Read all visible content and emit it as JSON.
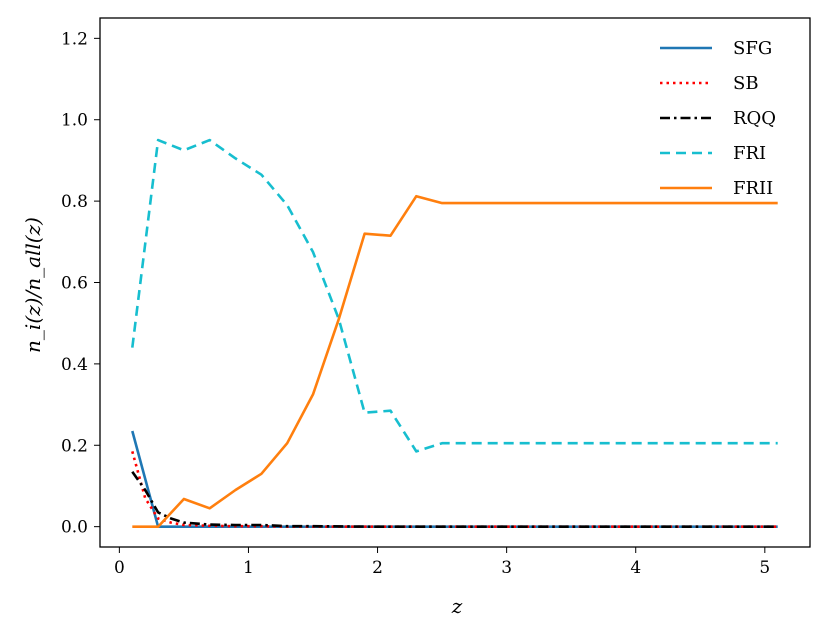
{
  "chart_data": {
    "type": "line",
    "xlabel": "z",
    "ylabel": "n_i(z)/n_all(z)",
    "xlim": [
      -0.15,
      5.35
    ],
    "ylim": [
      -0.05,
      1.25
    ],
    "xticks": [
      0,
      1,
      2,
      3,
      4,
      5
    ],
    "xtick_labels": [
      "0",
      "1",
      "2",
      "3",
      "4",
      "5"
    ],
    "yticks": [
      0.0,
      0.2,
      0.4,
      0.6,
      0.8,
      1.0,
      1.2
    ],
    "ytick_labels": [
      "0.0",
      "0.2",
      "0.4",
      "0.6",
      "0.8",
      "1.0",
      "1.2"
    ],
    "grid": false,
    "legend_position": "top-right",
    "series": [
      {
        "name": "SFG",
        "color": "#1f77b4",
        "style": "solid",
        "x": [
          0.1,
          0.3,
          0.5,
          0.7,
          0.9,
          1.1,
          1.3,
          1.5,
          1.7,
          1.9,
          2.1,
          2.3,
          2.5,
          3.0,
          3.5,
          4.0,
          4.5,
          5.1
        ],
        "y": [
          0.235,
          0.0,
          0.0,
          0.0,
          0.0,
          0.0,
          0.0,
          0.0,
          0.0,
          0.0,
          0.0,
          0.0,
          0.0,
          0.0,
          0.0,
          0.0,
          0.0,
          0.0
        ]
      },
      {
        "name": "SB",
        "color": "#ff0000",
        "style": "dotted",
        "x": [
          0.1,
          0.2,
          0.3,
          0.4,
          0.5,
          0.7,
          0.9,
          1.1,
          1.3,
          1.5,
          2.0,
          2.5,
          3.0,
          4.0,
          5.1
        ],
        "y": [
          0.185,
          0.07,
          0.02,
          0.01,
          0.004,
          0.002,
          0.001,
          0.001,
          0.0,
          0.0,
          0.0,
          0.0,
          0.0,
          0.0,
          0.0
        ]
      },
      {
        "name": "RQQ",
        "color": "#000000",
        "style": "dashdot",
        "x": [
          0.1,
          0.2,
          0.3,
          0.4,
          0.5,
          0.7,
          0.9,
          1.1,
          1.3,
          1.5,
          2.0,
          2.5,
          3.0,
          4.0,
          5.1
        ],
        "y": [
          0.135,
          0.09,
          0.035,
          0.02,
          0.01,
          0.005,
          0.004,
          0.004,
          0.001,
          0.001,
          0.0,
          0.0,
          0.0,
          0.0,
          0.0
        ]
      },
      {
        "name": "FRI",
        "color": "#17becf",
        "style": "dashed",
        "x": [
          0.1,
          0.3,
          0.5,
          0.7,
          0.9,
          1.1,
          1.3,
          1.5,
          1.7,
          1.9,
          2.1,
          2.3,
          2.5,
          3.0,
          3.5,
          4.0,
          4.5,
          5.1
        ],
        "y": [
          0.44,
          0.95,
          0.925,
          0.95,
          0.905,
          0.865,
          0.79,
          0.675,
          0.51,
          0.28,
          0.285,
          0.185,
          0.205,
          0.205,
          0.205,
          0.205,
          0.205,
          0.205
        ]
      },
      {
        "name": "FRII",
        "color": "#ff7f0e",
        "style": "solid",
        "x": [
          0.1,
          0.3,
          0.5,
          0.7,
          0.9,
          1.1,
          1.3,
          1.5,
          1.7,
          1.9,
          2.1,
          2.3,
          2.5,
          3.0,
          3.5,
          4.0,
          4.5,
          5.1
        ],
        "y": [
          0.0,
          0.0,
          0.068,
          0.045,
          0.09,
          0.13,
          0.205,
          0.325,
          0.51,
          0.72,
          0.715,
          0.812,
          0.795,
          0.795,
          0.795,
          0.795,
          0.795,
          0.795
        ]
      }
    ]
  }
}
